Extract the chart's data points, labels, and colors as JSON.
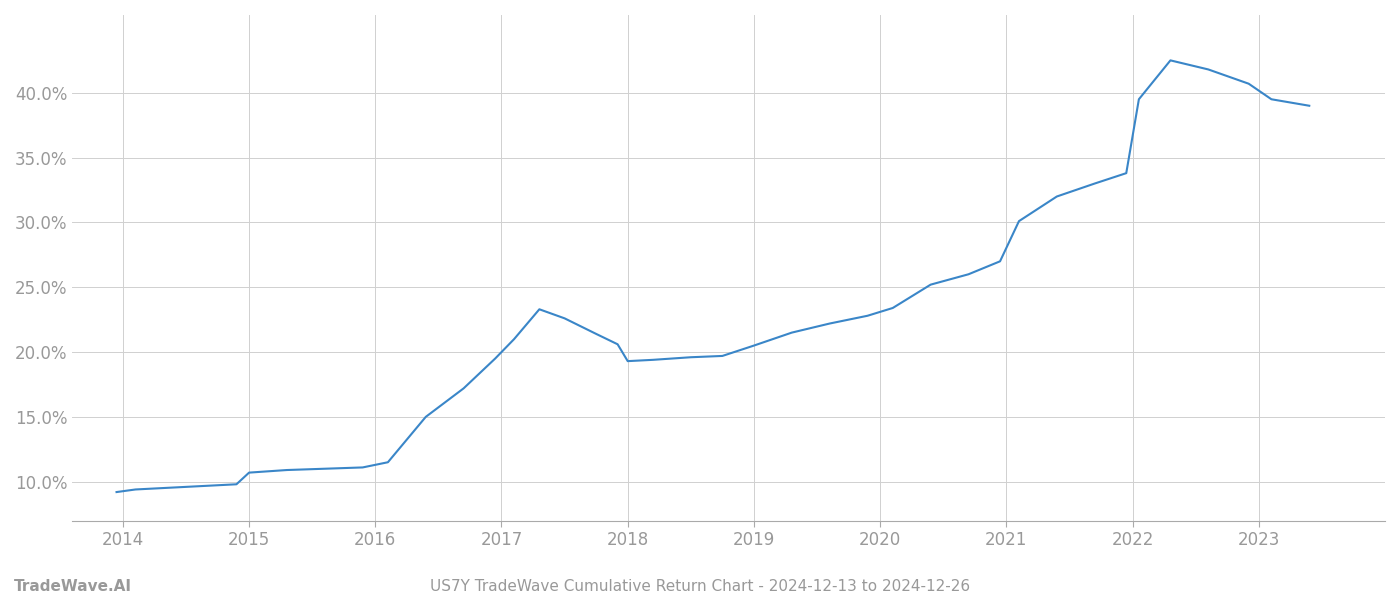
{
  "x_years": [
    2013.95,
    2014.1,
    2014.5,
    2014.9,
    2015.0,
    2015.3,
    2015.6,
    2015.9,
    2016.1,
    2016.4,
    2016.7,
    2016.95,
    2017.1,
    2017.3,
    2017.5,
    2017.75,
    2017.92,
    2018.0,
    2018.2,
    2018.5,
    2018.75,
    2019.0,
    2019.3,
    2019.6,
    2019.9,
    2020.1,
    2020.4,
    2020.7,
    2020.95,
    2021.1,
    2021.4,
    2021.7,
    2021.95,
    2022.05,
    2022.3,
    2022.6,
    2022.92,
    2023.1,
    2023.4
  ],
  "y_values": [
    0.092,
    0.094,
    0.096,
    0.098,
    0.107,
    0.109,
    0.11,
    0.111,
    0.115,
    0.15,
    0.172,
    0.195,
    0.21,
    0.233,
    0.226,
    0.214,
    0.206,
    0.193,
    0.194,
    0.196,
    0.197,
    0.205,
    0.215,
    0.222,
    0.228,
    0.234,
    0.252,
    0.26,
    0.27,
    0.301,
    0.32,
    0.33,
    0.338,
    0.395,
    0.425,
    0.418,
    0.407,
    0.395,
    0.39
  ],
  "line_color": "#3a86c8",
  "line_width": 1.5,
  "background_color": "#ffffff",
  "grid_color": "#d0d0d0",
  "title": "US7Y TradeWave Cumulative Return Chart - 2024-12-13 to 2024-12-26",
  "footer_left": "TradeWave.AI",
  "xlabel": "",
  "ylabel": "",
  "xlim": [
    2013.6,
    2024.0
  ],
  "ylim": [
    0.07,
    0.46
  ],
  "xtick_labels": [
    "2014",
    "2015",
    "2016",
    "2017",
    "2018",
    "2019",
    "2020",
    "2021",
    "2022",
    "2023"
  ],
  "xtick_positions": [
    2014,
    2015,
    2016,
    2017,
    2018,
    2019,
    2020,
    2021,
    2022,
    2023
  ],
  "ytick_values": [
    0.1,
    0.15,
    0.2,
    0.25,
    0.3,
    0.35,
    0.4
  ],
  "ytick_labels": [
    "10.0%",
    "15.0%",
    "20.0%",
    "25.0%",
    "30.0%",
    "35.0%",
    "40.0%"
  ],
  "title_fontsize": 11,
  "tick_fontsize": 12,
  "footer_fontsize": 11,
  "tick_color": "#999999",
  "spine_color": "#aaaaaa"
}
